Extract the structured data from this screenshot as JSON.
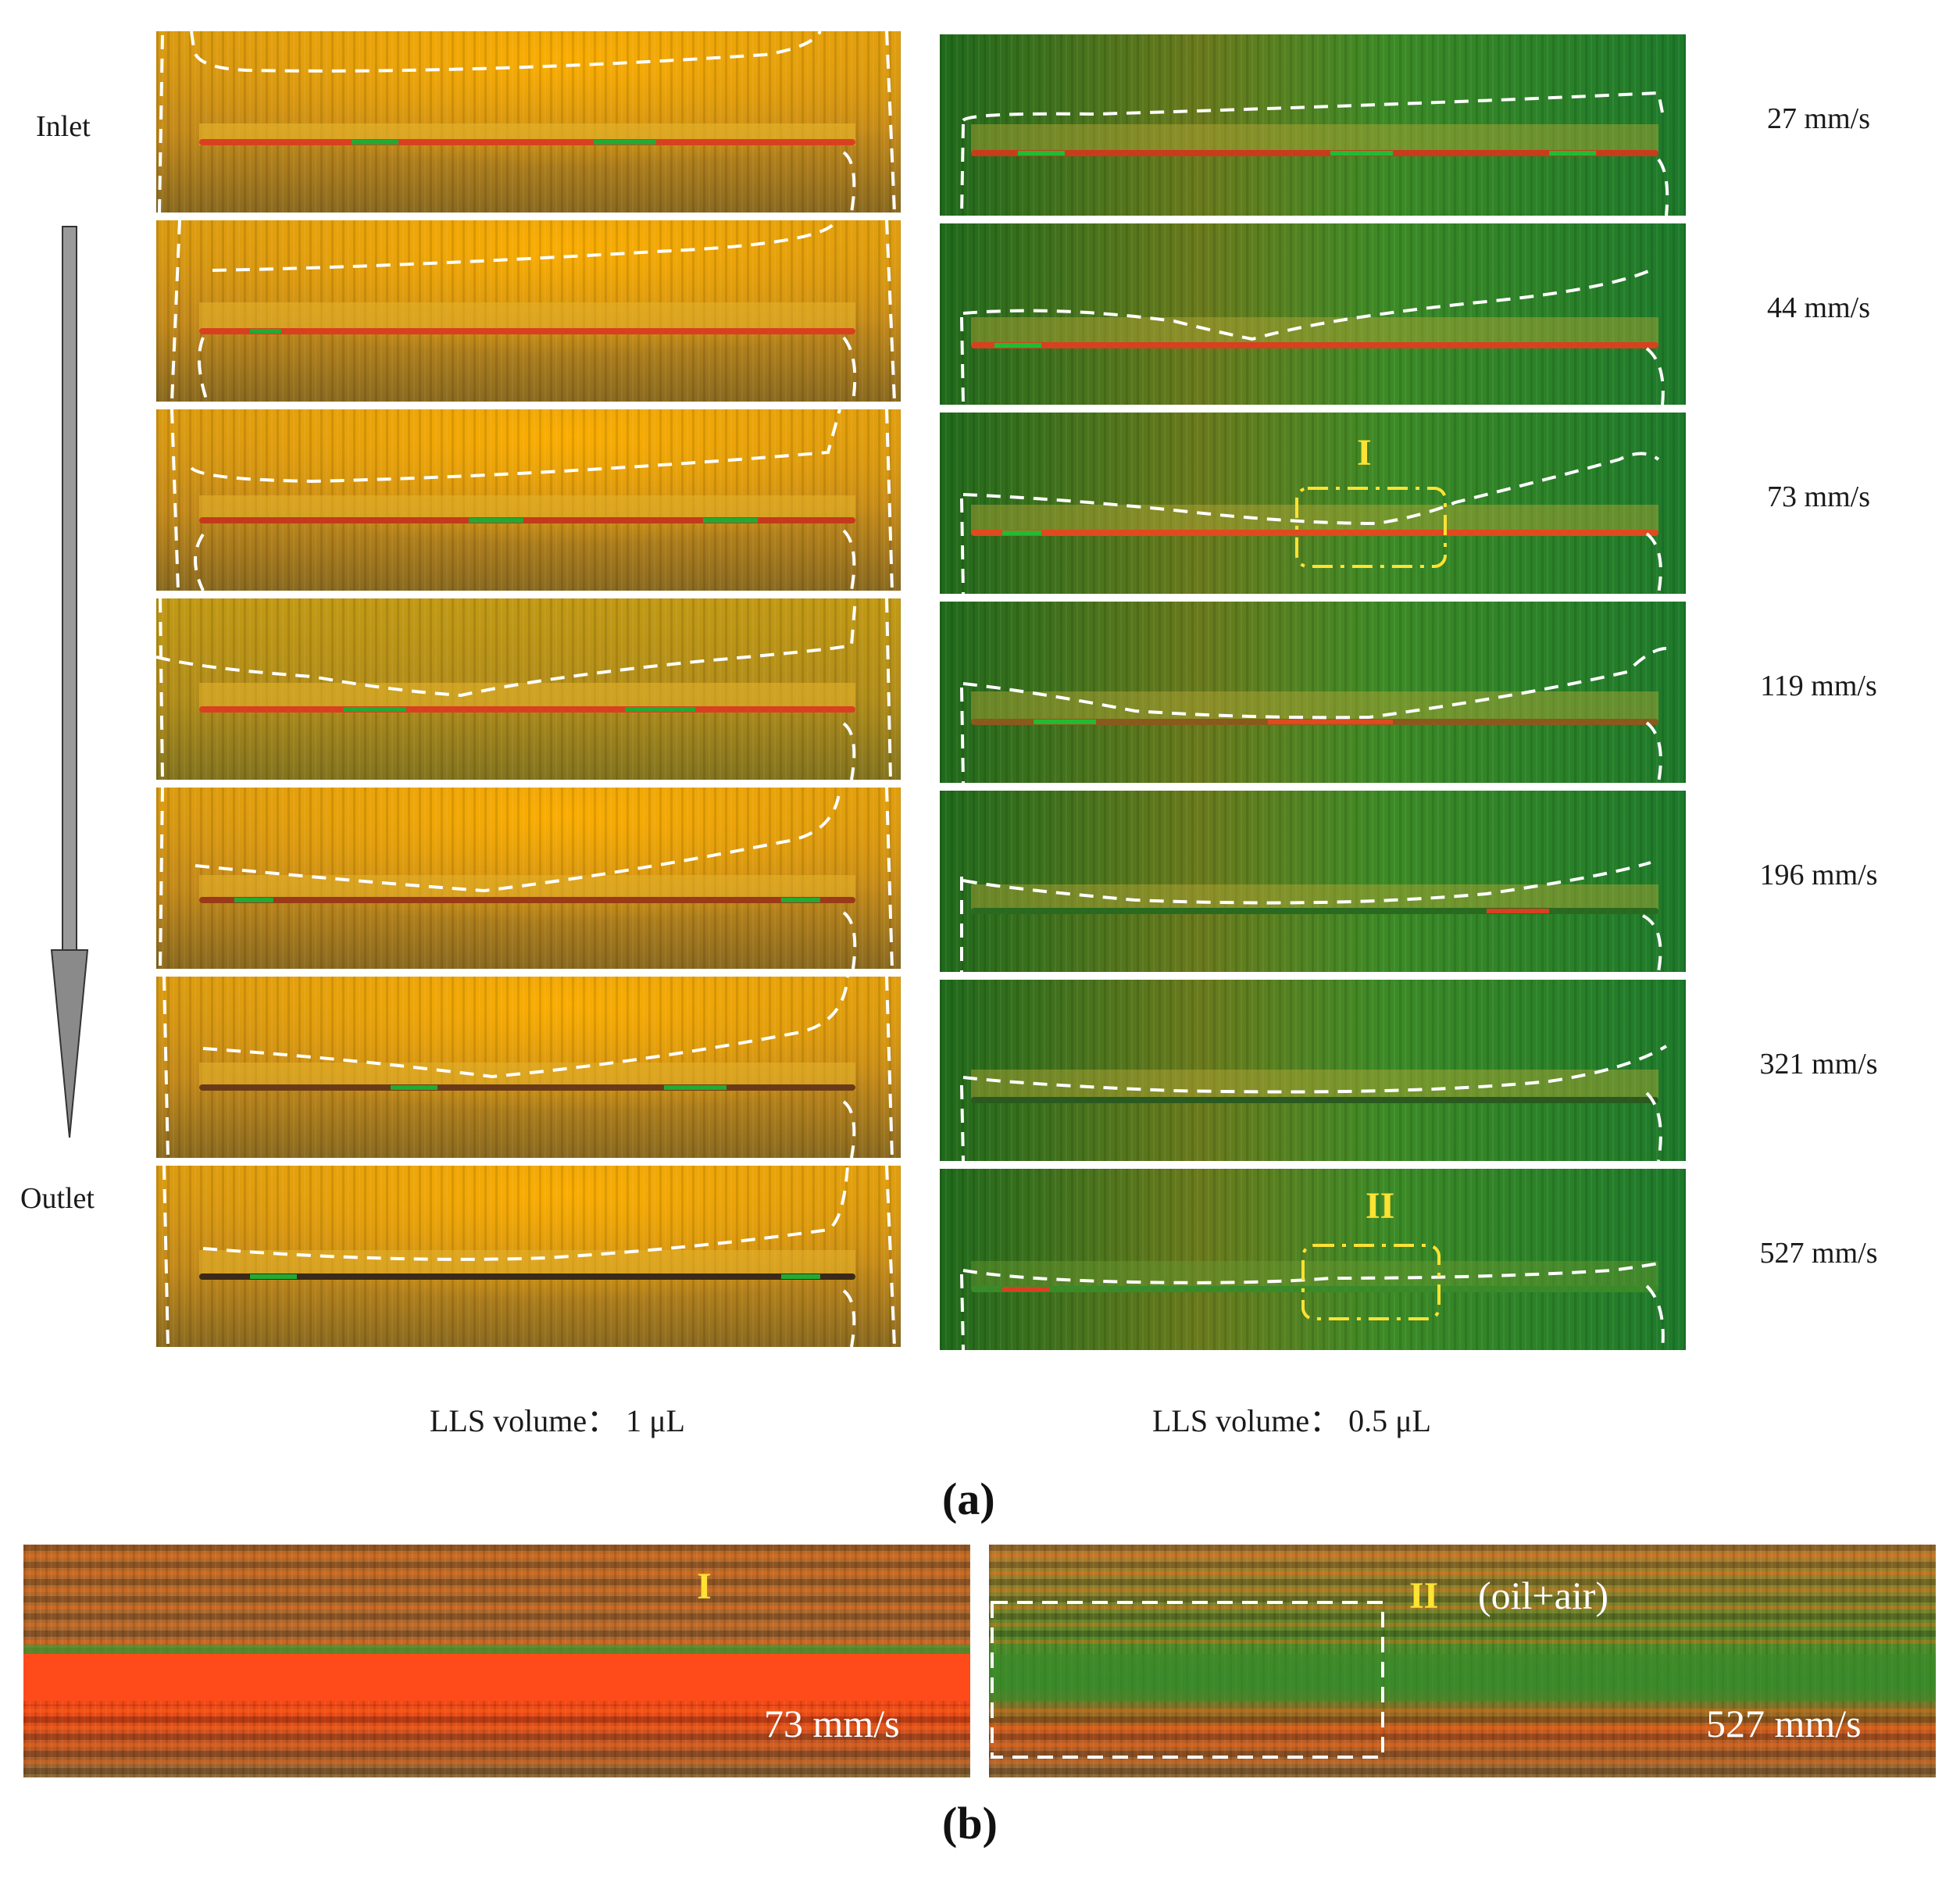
{
  "figure": {
    "flow_labels": {
      "inlet": "Inlet",
      "outlet": "Outlet"
    },
    "speeds": [
      "27 mm/s",
      "44 mm/s",
      "73 mm/s",
      "119 mm/s",
      "196 mm/s",
      "321 mm/s",
      "527 mm/s"
    ],
    "volumes": {
      "left": "LLS volume： 1 μL",
      "right": "LLS volume： 0.5 μL"
    },
    "markers": {
      "region_1": "I",
      "region_2": "II"
    },
    "captions": {
      "a": "(a)",
      "b": "(b)"
    },
    "zoom": {
      "left_speed": "73 mm/s",
      "right_speed": "527 mm/s",
      "right_note": "(oil+air)"
    },
    "colors": {
      "orange_panel": "#c8921a",
      "green_panel": "#2e7a22",
      "contour": "#ffffff",
      "highlight": "#ffe233"
    }
  }
}
